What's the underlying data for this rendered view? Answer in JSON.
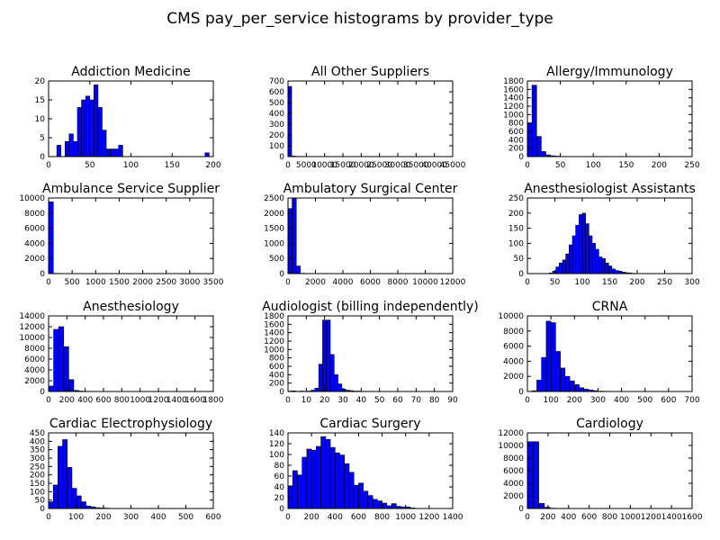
{
  "figure": {
    "suptitle": "CMS pay_per_service histograms by provider_type",
    "bar_color": "#0000ff",
    "edge_color": "#000000",
    "background": "#ffffff"
  },
  "chart_data": [
    {
      "type": "bar",
      "title": "Addiction Medicine",
      "grid": false,
      "xlim": [
        0,
        200
      ],
      "ylim": [
        0,
        20
      ],
      "xticks": [
        "0",
        "50",
        "100",
        "150",
        "200"
      ],
      "yticks": [
        "0",
        "5",
        "10",
        "15",
        "20"
      ],
      "bin_start": 0,
      "bin_width": 5,
      "values": [
        0,
        0,
        3,
        0,
        4,
        6,
        4,
        13,
        15,
        16,
        15,
        19,
        13,
        7,
        2,
        2,
        2,
        3,
        0,
        0,
        0,
        0,
        0,
        0,
        0,
        0,
        0,
        0,
        0,
        0,
        0,
        0,
        0,
        0,
        0,
        0,
        0,
        0,
        1,
        0
      ]
    },
    {
      "type": "bar",
      "title": "All Other Suppliers",
      "grid": false,
      "xlim": [
        0,
        45000
      ],
      "ylim": [
        0,
        700
      ],
      "xticks": [
        "0",
        "5000",
        "10000",
        "15000",
        "20000",
        "25000",
        "30000",
        "35000",
        "40000",
        "45000"
      ],
      "yticks": [
        "0",
        "100",
        "200",
        "300",
        "400",
        "500",
        "600",
        "700"
      ],
      "bin_start": 0,
      "bin_width": 1000,
      "values": [
        650,
        5,
        2,
        1,
        0,
        0,
        0,
        0,
        0,
        0,
        0,
        0,
        0,
        0,
        0,
        0,
        0,
        0,
        0,
        0,
        0,
        0,
        0,
        0,
        0,
        0,
        0,
        0,
        0,
        0,
        0,
        0,
        0,
        0,
        0,
        0,
        0,
        0,
        0,
        0,
        0,
        0,
        0,
        0,
        0
      ]
    },
    {
      "type": "bar",
      "title": "Allergy/Immunology",
      "grid": false,
      "xlim": [
        0,
        250
      ],
      "ylim": [
        0,
        1800
      ],
      "xticks": [
        "0",
        "50",
        "100",
        "150",
        "200",
        "250"
      ],
      "yticks": [
        "0",
        "200",
        "400",
        "600",
        "800",
        "1000",
        "1200",
        "1400",
        "1600",
        "1800"
      ],
      "bin_start": 0,
      "bin_width": 7,
      "values": [
        800,
        1700,
        480,
        120,
        40,
        20,
        10,
        5,
        3,
        2,
        1,
        1,
        1,
        0,
        0,
        0,
        0,
        0,
        0,
        0,
        0,
        0,
        0,
        0,
        0,
        0,
        0,
        0,
        0,
        0,
        0,
        0
      ]
    },
    {
      "type": "bar",
      "title": "Ambulance Service Supplier",
      "grid": false,
      "xlim": [
        0,
        3500
      ],
      "ylim": [
        0,
        10000
      ],
      "xticks": [
        "0",
        "500",
        "1000",
        "1500",
        "2000",
        "2500",
        "3000",
        "3500"
      ],
      "yticks": [
        "0",
        "2000",
        "4000",
        "6000",
        "8000",
        "10000"
      ],
      "bin_start": 0,
      "bin_width": 100,
      "values": [
        9500,
        40,
        10,
        5,
        0,
        0,
        0,
        0,
        0,
        0,
        0,
        0,
        0,
        0,
        0,
        0,
        0,
        0,
        0,
        0,
        0,
        0,
        0,
        0,
        0,
        0,
        0,
        0,
        0,
        0,
        0,
        0,
        0,
        0,
        0
      ]
    },
    {
      "type": "bar",
      "title": "Ambulatory Surgical Center",
      "grid": false,
      "xlim": [
        0,
        12000
      ],
      "ylim": [
        0,
        2500
      ],
      "xticks": [
        "0",
        "2000",
        "4000",
        "6000",
        "8000",
        "10000",
        "12000"
      ],
      "yticks": [
        "0",
        "500",
        "1000",
        "1500",
        "2000",
        "2500"
      ],
      "bin_start": 0,
      "bin_width": 300,
      "values": [
        2150,
        2500,
        250,
        10,
        5,
        0,
        0,
        0,
        0,
        0,
        0,
        0,
        0,
        0,
        0,
        0,
        0,
        0,
        0,
        0,
        0,
        0,
        0,
        0,
        0,
        0,
        0,
        0,
        0,
        0,
        0,
        0,
        0,
        0,
        0,
        0,
        0,
        0,
        0,
        0
      ]
    },
    {
      "type": "bar",
      "title": "Anesthesiologist Assistants",
      "grid": false,
      "xlim": [
        0,
        300
      ],
      "ylim": [
        0,
        250
      ],
      "xticks": [
        "0",
        "50",
        "100",
        "150",
        "200",
        "250",
        "300"
      ],
      "yticks": [
        "0",
        "50",
        "100",
        "150",
        "200",
        "250"
      ],
      "bin_start": 40,
      "bin_width": 6,
      "values": [
        2,
        8,
        22,
        35,
        45,
        65,
        95,
        125,
        160,
        195,
        200,
        165,
        125,
        100,
        80,
        55,
        50,
        35,
        25,
        15,
        10,
        8,
        5,
        3,
        2,
        1,
        0,
        0,
        0,
        0,
        0,
        0,
        0,
        0,
        0,
        0,
        0,
        0,
        0,
        0,
        0,
        0,
        0
      ]
    },
    {
      "type": "bar",
      "title": "Anesthesiology",
      "grid": false,
      "xlim": [
        0,
        1800
      ],
      "ylim": [
        0,
        14000
      ],
      "xticks": [
        "0",
        "200",
        "400",
        "600",
        "800",
        "1000",
        "1200",
        "1400",
        "1600",
        "1800"
      ],
      "yticks": [
        "0",
        "2000",
        "4000",
        "6000",
        "8000",
        "10000",
        "12000",
        "14000"
      ],
      "bin_start": 0,
      "bin_width": 55,
      "values": [
        1000,
        11500,
        12000,
        8300,
        2200,
        200,
        80,
        40,
        20,
        10,
        5,
        3,
        2,
        1,
        0,
        0,
        0,
        0,
        0,
        0,
        0,
        0,
        0,
        0,
        0,
        0,
        0,
        0,
        0,
        0,
        0,
        0
      ]
    },
    {
      "type": "bar",
      "title": "Audiologist (billing independently)",
      "grid": false,
      "xlim": [
        0,
        90
      ],
      "ylim": [
        0,
        1800
      ],
      "xticks": [
        "0",
        "10",
        "20",
        "30",
        "40",
        "50",
        "60",
        "70",
        "80",
        "90"
      ],
      "yticks": [
        "0",
        "200",
        "400",
        "600",
        "800",
        "1000",
        "1200",
        "1400",
        "1600",
        "1800"
      ],
      "bin_start": 0,
      "bin_width": 2.1,
      "values": [
        10,
        15,
        5,
        10,
        5,
        10,
        30,
        80,
        650,
        1700,
        1700,
        880,
        400,
        180,
        60,
        30,
        20,
        10,
        10,
        5,
        5,
        5,
        3,
        2,
        1,
        1,
        1,
        0,
        0,
        0,
        0,
        0,
        0,
        0,
        0,
        0,
        0,
        0,
        0,
        0,
        0,
        0
      ]
    },
    {
      "type": "bar",
      "title": "CRNA",
      "grid": false,
      "xlim": [
        0,
        700
      ],
      "ylim": [
        0,
        10000
      ],
      "xticks": [
        "0",
        "100",
        "200",
        "300",
        "400",
        "500",
        "600",
        "700"
      ],
      "yticks": [
        "0",
        "2000",
        "4000",
        "6000",
        "8000",
        "10000"
      ],
      "bin_start": 20,
      "bin_width": 20,
      "values": [
        100,
        1500,
        4500,
        9300,
        9100,
        5300,
        3100,
        2000,
        1400,
        900,
        500,
        300,
        200,
        100,
        50,
        30,
        20,
        10,
        5,
        3,
        2,
        1,
        0,
        0,
        0,
        0,
        0,
        0,
        0,
        0,
        0,
        0,
        0,
        0
      ]
    },
    {
      "type": "bar",
      "title": "Cardiac Electrophysiology",
      "grid": false,
      "xlim": [
        0,
        600
      ],
      "ylim": [
        0,
        450
      ],
      "xticks": [
        "0",
        "100",
        "200",
        "300",
        "400",
        "500",
        "600"
      ],
      "yticks": [
        "0",
        "50",
        "100",
        "150",
        "200",
        "250",
        "300",
        "350",
        "400",
        "450"
      ],
      "bin_start": 0,
      "bin_width": 17,
      "values": [
        40,
        140,
        370,
        410,
        245,
        120,
        75,
        40,
        15,
        10,
        5,
        3,
        2,
        1,
        0,
        0,
        0,
        0,
        0,
        0,
        0,
        0,
        0,
        0,
        0,
        0,
        0,
        0,
        0,
        0,
        0,
        0,
        0,
        0,
        0
      ]
    },
    {
      "type": "bar",
      "title": "Cardiac Surgery",
      "grid": false,
      "xlim": [
        0,
        1400
      ],
      "ylim": [
        0,
        140
      ],
      "xticks": [
        "0",
        "200",
        "400",
        "600",
        "800",
        "1000",
        "1200",
        "1400"
      ],
      "yticks": [
        "0",
        "20",
        "40",
        "60",
        "80",
        "100",
        "120",
        "140"
      ],
      "bin_start": 0,
      "bin_width": 40,
      "values": [
        42,
        70,
        62,
        95,
        110,
        108,
        115,
        133,
        128,
        113,
        103,
        99,
        83,
        67,
        43,
        47,
        32,
        24,
        17,
        14,
        10,
        5,
        9,
        4,
        3,
        3,
        1,
        0,
        0,
        0,
        0,
        0,
        0,
        0,
        0
      ]
    },
    {
      "type": "bar",
      "title": "Cardiology",
      "grid": false,
      "xlim": [
        0,
        1600
      ],
      "ylim": [
        0,
        12000
      ],
      "xticks": [
        "0",
        "200",
        "400",
        "600",
        "800",
        "1000",
        "1200",
        "1400",
        "1600"
      ],
      "yticks": [
        "0",
        "2000",
        "4000",
        "6000",
        "8000",
        "10000",
        "12000"
      ],
      "bin_start": 0,
      "bin_width": 55,
      "values": [
        10600,
        10600,
        800,
        200,
        50,
        20,
        10,
        5,
        0,
        0,
        0,
        0,
        0,
        0,
        0,
        0,
        0,
        0,
        0,
        0,
        0,
        0,
        0,
        0,
        0,
        0,
        0,
        0,
        0
      ]
    }
  ]
}
